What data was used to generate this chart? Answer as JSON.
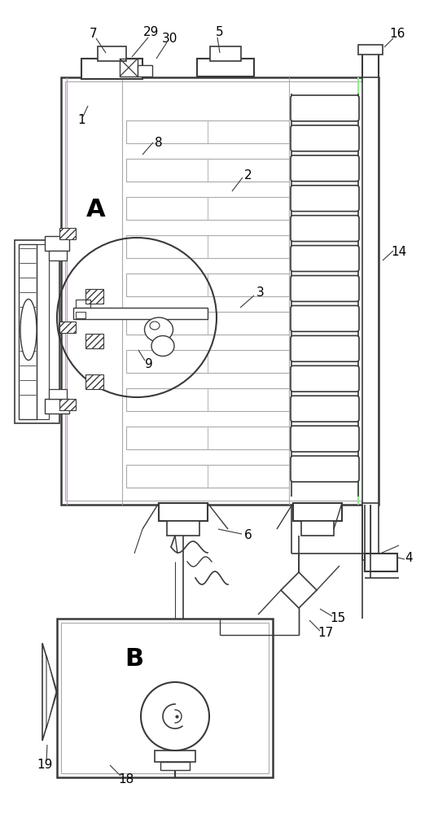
{
  "bg_color": "#ffffff",
  "lc": "#3a3a3a",
  "llc": "#aaaaaa",
  "glc": "#90ee90",
  "plc": "#cc99cc",
  "fig_width": 5.22,
  "fig_height": 10.0,
  "dpi": 100
}
